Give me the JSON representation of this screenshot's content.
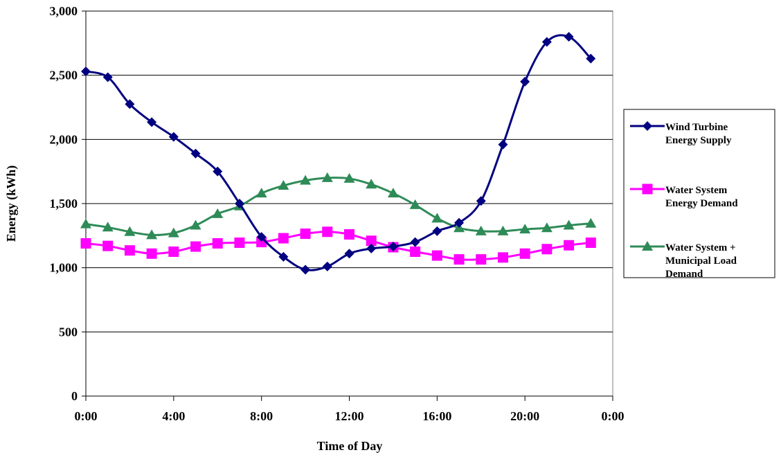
{
  "chart_data": {
    "type": "line",
    "xlabel": "Time of Day",
    "ylabel": "Energy (kWh)",
    "xlim": [
      0,
      24
    ],
    "ylim": [
      0,
      3000
    ],
    "x_ticks": [
      0,
      4,
      8,
      12,
      16,
      20,
      24
    ],
    "x_tick_labels": [
      "0:00",
      "4:00",
      "8:00",
      "12:00",
      "16:00",
      "20:00",
      "0:00"
    ],
    "y_ticks": [
      0,
      500,
      1000,
      1500,
      2000,
      2500,
      3000
    ],
    "y_tick_labels": [
      "0",
      "500",
      "1,000",
      "1,500",
      "2,000",
      "2,500",
      "3,000"
    ],
    "grid": "horizontal major gridlines",
    "legend_position": "right",
    "x": [
      0,
      1,
      2,
      3,
      4,
      5,
      6,
      7,
      8,
      9,
      10,
      11,
      12,
      13,
      14,
      15,
      16,
      17,
      18,
      19,
      20,
      21,
      22,
      23
    ],
    "series": [
      {
        "name": "Wind Turbine Energy Supply",
        "legend_lines": [
          "Wind Turbine",
          "Energy Supply"
        ],
        "color": "#000080",
        "marker": "diamond",
        "values": [
          2530,
          2485,
          2275,
          2135,
          2020,
          1890,
          1750,
          1500,
          1240,
          1085,
          985,
          1010,
          1110,
          1150,
          1165,
          1200,
          1285,
          1350,
          1520,
          1960,
          2450,
          2760,
          2800,
          2630
        ]
      },
      {
        "name": "Water System Energy Demand",
        "legend_lines": [
          "Water System",
          "Energy Demand"
        ],
        "color": "#FF00FF",
        "marker": "square",
        "values": [
          1190,
          1170,
          1135,
          1110,
          1125,
          1165,
          1190,
          1195,
          1200,
          1230,
          1265,
          1280,
          1260,
          1210,
          1160,
          1125,
          1095,
          1065,
          1065,
          1080,
          1110,
          1145,
          1175,
          1195
        ]
      },
      {
        "name": "Water System + Municipal Load Demand",
        "legend_lines": [
          "Water System +",
          "Municipal Load",
          "Demand"
        ],
        "color": "#2E8B57",
        "marker": "triangle",
        "values": [
          1340,
          1315,
          1280,
          1255,
          1270,
          1330,
          1420,
          1480,
          1580,
          1640,
          1680,
          1700,
          1695,
          1650,
          1580,
          1490,
          1385,
          1310,
          1285,
          1285,
          1300,
          1310,
          1330,
          1345
        ]
      }
    ]
  }
}
